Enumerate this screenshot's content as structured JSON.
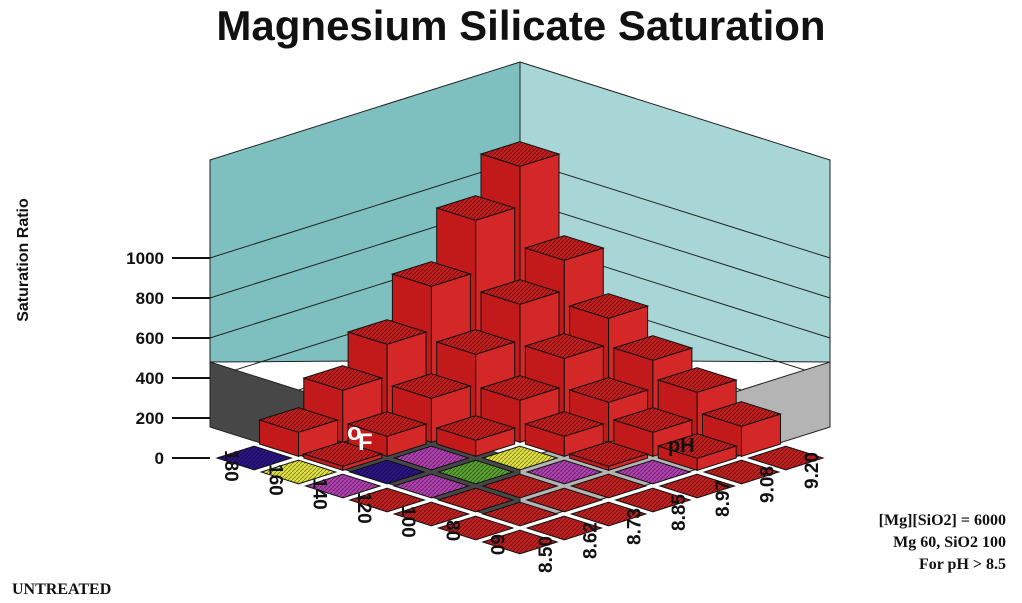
{
  "chart_data": {
    "type": "bar3d",
    "title": "Magnesium Silicate Saturation",
    "zlabel": "Saturation Ratio",
    "z_ticks": [
      "0",
      "200",
      "400",
      "600",
      "800",
      "1000"
    ],
    "zlim": [
      0,
      1000
    ],
    "x_axis_label_main": "o",
    "x_axis_label_sub": "F",
    "x_categories": [
      "180",
      "160",
      "140",
      "120",
      "100",
      "80",
      "60"
    ],
    "y_axis_label": "pH",
    "y_categories": [
      "8.50",
      "8.62",
      "8.73",
      "8.85",
      "8.97",
      "9.08",
      "9.20"
    ],
    "values": [
      [
        1100,
        700,
        480,
        340,
        250,
        150,
        0
      ],
      [
        900,
        550,
        350,
        200,
        120,
        60,
        0
      ],
      [
        640,
        370,
        210,
        100,
        20,
        0,
        0
      ],
      [
        420,
        220,
        80,
        0,
        0,
        0,
        0
      ],
      [
        260,
        100,
        0,
        0,
        0,
        0,
        0
      ],
      [
        120,
        20,
        0,
        0,
        0,
        0,
        0
      ],
      [
        0,
        0,
        0,
        0,
        0,
        0,
        0
      ]
    ],
    "zero_cell_colors": [
      [
        null,
        null,
        null,
        null,
        null,
        null,
        "#c22020"
      ],
      [
        null,
        null,
        null,
        null,
        null,
        null,
        "#c22020"
      ],
      [
        null,
        null,
        null,
        null,
        null,
        "#b040b0",
        "#c22020"
      ],
      [
        null,
        null,
        null,
        "#e0e040",
        "#b040b0",
        "#c22020",
        "#c22020"
      ],
      [
        null,
        null,
        "#b040b0",
        "#5aa032",
        "#c22020",
        "#c22020",
        "#c22020"
      ],
      [
        null,
        null,
        "#2a1585",
        "#b040b0",
        "#c22020",
        "#c22020",
        "#c22020"
      ],
      [
        "#2a1585",
        "#e0e040",
        "#b040b0",
        "#c22020",
        "#c22020",
        "#c22020",
        "#c22020"
      ]
    ],
    "colors": {
      "bar": "#c41e1e",
      "left_wall": "#7ebfc0",
      "right_wall": "#a8d6d6",
      "floor_left": "#474747",
      "floor_right": "#b4b4b4"
    },
    "notes": [
      "[Mg][SiO2] = 6000",
      "Mg 60,  SiO2 100",
      "For pH  > 8.5"
    ],
    "label": "UNTREATED"
  }
}
